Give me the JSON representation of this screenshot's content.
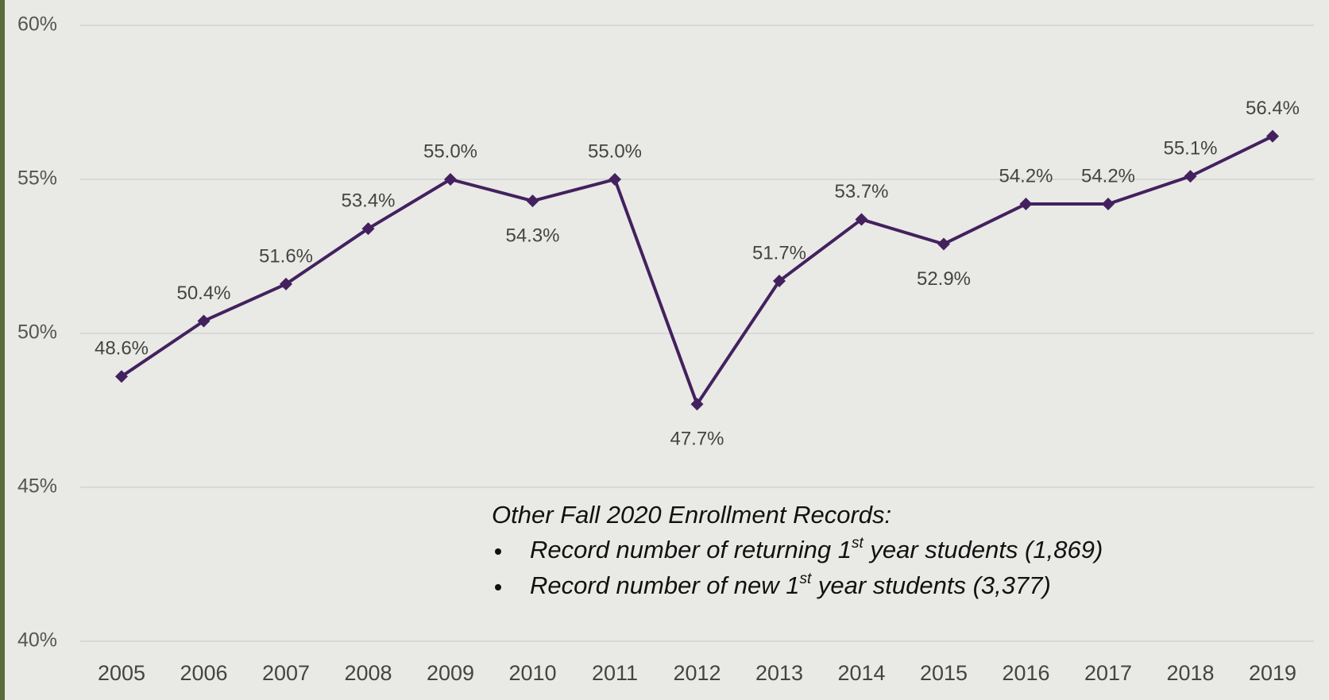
{
  "chart_data": {
    "type": "line",
    "categories": [
      "2005",
      "2006",
      "2007",
      "2008",
      "2009",
      "2010",
      "2011",
      "2012",
      "2013",
      "2014",
      "2015",
      "2016",
      "2017",
      "2018",
      "2019"
    ],
    "series": [
      {
        "color": "#43215e",
        "values": [
          48.6,
          50.4,
          51.6,
          53.4,
          55.0,
          54.3,
          55.0,
          47.7,
          51.7,
          53.7,
          52.9,
          54.2,
          54.2,
          55.1,
          56.4
        ],
        "value_labels": [
          "48.6%",
          "50.4%",
          "51.6%",
          "53.4%",
          "55.0%",
          "54.3%",
          "55.0%",
          "47.7%",
          "51.7%",
          "53.7%",
          "52.9%",
          "54.2%",
          "54.2%",
          "55.1%",
          "56.4%"
        ]
      }
    ],
    "ylim": [
      40,
      60
    ],
    "yticks": [
      {
        "value": 40,
        "label": "40%"
      },
      {
        "value": 45,
        "label": "45%"
      },
      {
        "value": 50,
        "label": "50%"
      },
      {
        "value": 55,
        "label": "55%"
      },
      {
        "value": 60,
        "label": "60%"
      }
    ],
    "grid": true,
    "annotation": {
      "title": "Other Fall 2020 Enrollment Records:",
      "bullets": [
        [
          "Record number of returning 1",
          "st",
          " year students (1,869)"
        ],
        [
          "Record number of new 1",
          "st",
          " year students (3,377)"
        ]
      ]
    }
  }
}
